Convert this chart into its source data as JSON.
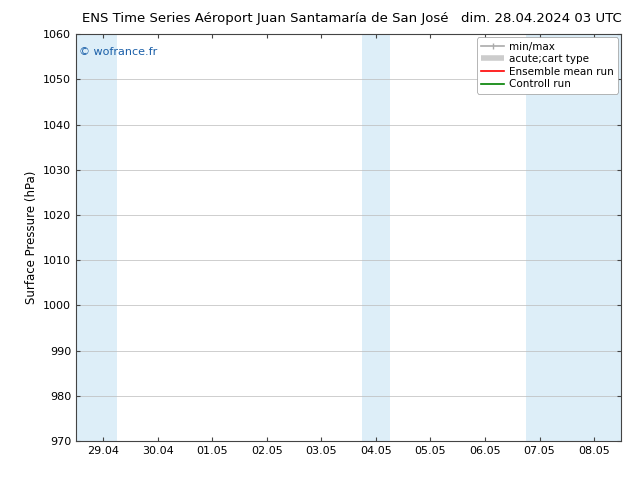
{
  "title_left": "ENS Time Series Aéroport Juan Santamaría de San José",
  "title_right": "dim. 28.04.2024 03 UTC",
  "ylabel": "Surface Pressure (hPa)",
  "ylim": [
    970,
    1060
  ],
  "yticks": [
    970,
    980,
    990,
    1000,
    1010,
    1020,
    1030,
    1040,
    1050,
    1060
  ],
  "xtick_labels": [
    "29.04",
    "30.04",
    "01.05",
    "02.05",
    "03.05",
    "04.05",
    "05.05",
    "06.05",
    "07.05",
    "08.05"
  ],
  "xtick_positions": [
    0,
    1,
    2,
    3,
    4,
    5,
    6,
    7,
    8,
    9
  ],
  "xlim": [
    -0.5,
    9.5
  ],
  "shade_regions": [
    {
      "xmin": -0.5,
      "xmax": 0.25
    },
    {
      "xmin": 4.75,
      "xmax": 5.25
    },
    {
      "xmin": 7.75,
      "xmax": 9.5
    }
  ],
  "shade_color": "#ddeef8",
  "background_color": "#ffffff",
  "grid_color": "#bbbbbb",
  "watermark_text": "© wofrance.fr",
  "watermark_color": "#1a5fa8",
  "legend_entries": [
    {
      "label": "min/max",
      "color": "#aaaaaa",
      "lw": 1.2
    },
    {
      "label": "acute;cart type",
      "color": "#cccccc",
      "lw": 4.0
    },
    {
      "label": "Ensemble mean run",
      "color": "#ff0000",
      "lw": 1.2
    },
    {
      "label": "Controll run",
      "color": "#008000",
      "lw": 1.2
    }
  ],
  "title_fontsize": 9.5,
  "ylabel_fontsize": 8.5,
  "tick_fontsize": 8,
  "legend_fontsize": 7.5,
  "watermark_fontsize": 8,
  "fig_bg_color": "#ffffff"
}
